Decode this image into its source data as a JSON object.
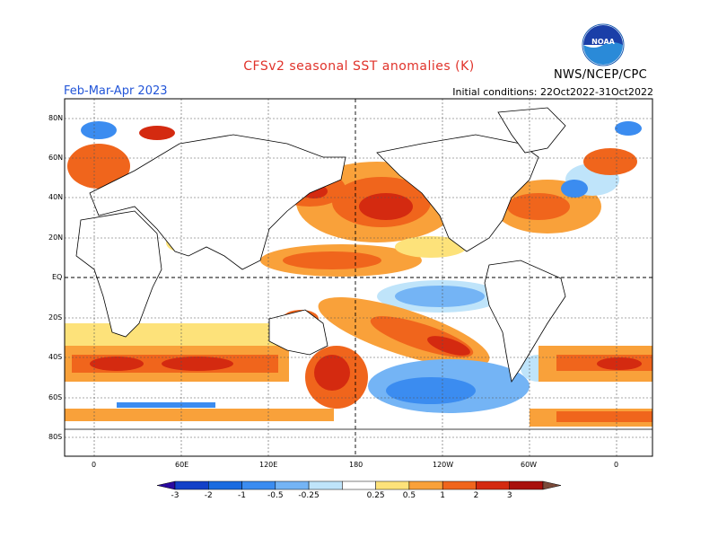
{
  "header": {
    "title": "CFSv2 seasonal SST anomalies (K)",
    "period": "Feb-Mar-Apr 2023",
    "initial_conditions": "Initial conditions: 22Oct2022-31Oct2022",
    "agency": "NWS/NCEP/CPC",
    "logo_text": "NOAA"
  },
  "colors": {
    "title": "#e0322a",
    "period": "#2255d8",
    "text": "#000000",
    "ocean_neutral": "#ffffff",
    "land": "#ffffff",
    "coastline": "#000000"
  },
  "map": {
    "lat_labels": [
      "80N",
      "60N",
      "40N",
      "20N",
      "EQ",
      "20S",
      "40S",
      "60S",
      "80S"
    ],
    "lon_labels": [
      "0",
      "60E",
      "120E",
      "180",
      "120W",
      "60W",
      "0"
    ]
  },
  "colorbar": {
    "labels": [
      "-3",
      "-2",
      "-1",
      "-0.5",
      "-0.25",
      "0.25",
      "0.5",
      "1",
      "2",
      "3"
    ],
    "bins": [
      {
        "color": "#2a0aa0"
      },
      {
        "color": "#1240c8"
      },
      {
        "color": "#1a6be0"
      },
      {
        "color": "#3b8cf0"
      },
      {
        "color": "#74b4f5"
      },
      {
        "color": "#bfe4fa"
      },
      {
        "color": "#ffffff"
      },
      {
        "color": "#fde27a"
      },
      {
        "color": "#f9a13a"
      },
      {
        "color": "#f0651c"
      },
      {
        "color": "#d42a10"
      },
      {
        "color": "#a8100c"
      },
      {
        "color": "#7a4a3a"
      }
    ]
  }
}
